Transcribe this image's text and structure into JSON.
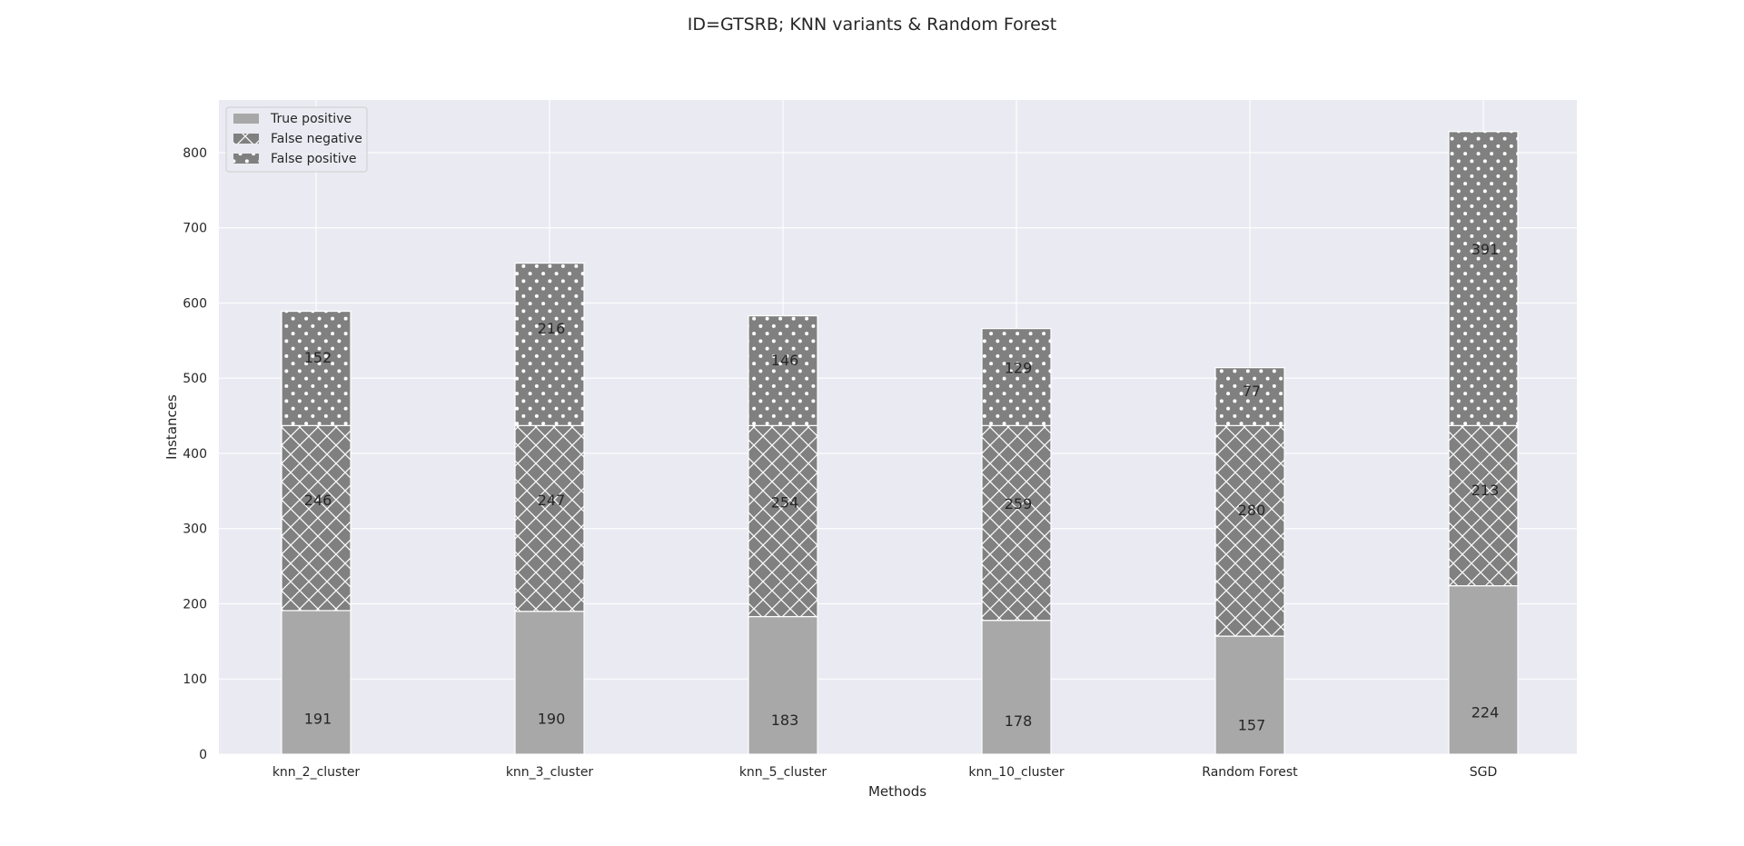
{
  "figure": {
    "title": "ID=GTSRB; KNN variants & Random Forest"
  },
  "chart_data": {
    "type": "bar",
    "stacked": true,
    "title": "ID=GTSRB; KNN variants & Random Forest",
    "xlabel": "Methods",
    "ylabel": "Instances",
    "ylim": [
      0,
      870
    ],
    "yticks": [
      0,
      100,
      200,
      300,
      400,
      500,
      600,
      700,
      800
    ],
    "grid": true,
    "legend_position": "upper-left",
    "categories": [
      "knn_2_cluster",
      "knn_3_cluster",
      "knn_5_cluster",
      "knn_10_cluster",
      "Random Forest",
      "SGD"
    ],
    "series": [
      {
        "name": "True positive",
        "values": [
          191,
          190,
          183,
          178,
          157,
          224
        ],
        "color": "#a8a8a8",
        "hatch": "none"
      },
      {
        "name": "False negative",
        "values": [
          246,
          247,
          254,
          259,
          280,
          213
        ],
        "color": "#808080",
        "hatch": "crosshatch"
      },
      {
        "name": "False positive",
        "values": [
          152,
          216,
          146,
          129,
          77,
          391
        ],
        "color": "#808080",
        "hatch": "dots"
      }
    ],
    "colors": {
      "background": "#eaeaf2",
      "grid": "#ffffff",
      "text": "#262626",
      "edge": "#ffffff"
    }
  }
}
